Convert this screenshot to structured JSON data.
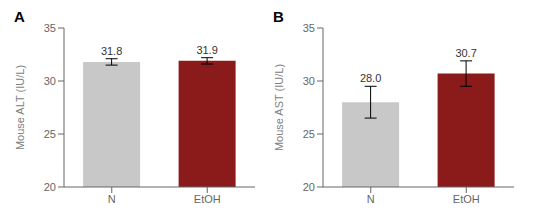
{
  "chart_data": [
    {
      "type": "bar",
      "title": "A",
      "categories": [
        "N",
        "EtOH"
      ],
      "values": [
        31.8,
        31.9
      ],
      "errors": [
        0.3,
        0.3
      ],
      "colors": [
        "#c8c8c8",
        "#8b1a1a"
      ],
      "y_label": "Mouse ALT (IU/L)",
      "ylim": [
        20,
        35
      ],
      "yticks": [
        20,
        25,
        30,
        35
      ],
      "data_labels": true,
      "value_labels": [
        "31.8",
        "31.9"
      ]
    },
    {
      "type": "bar",
      "title": "B",
      "categories": [
        "N",
        "EtOH"
      ],
      "values": [
        28.0,
        30.7
      ],
      "errors": [
        1.5,
        1.2
      ],
      "colors": [
        "#c8c8c8",
        "#8b1a1a"
      ],
      "y_label": "Mouse AST (IU/L)",
      "ylim": [
        20,
        35
      ],
      "yticks": [
        20,
        25,
        30,
        35
      ],
      "data_labels": true,
      "value_labels": [
        "28.0",
        "30.7"
      ]
    }
  ]
}
